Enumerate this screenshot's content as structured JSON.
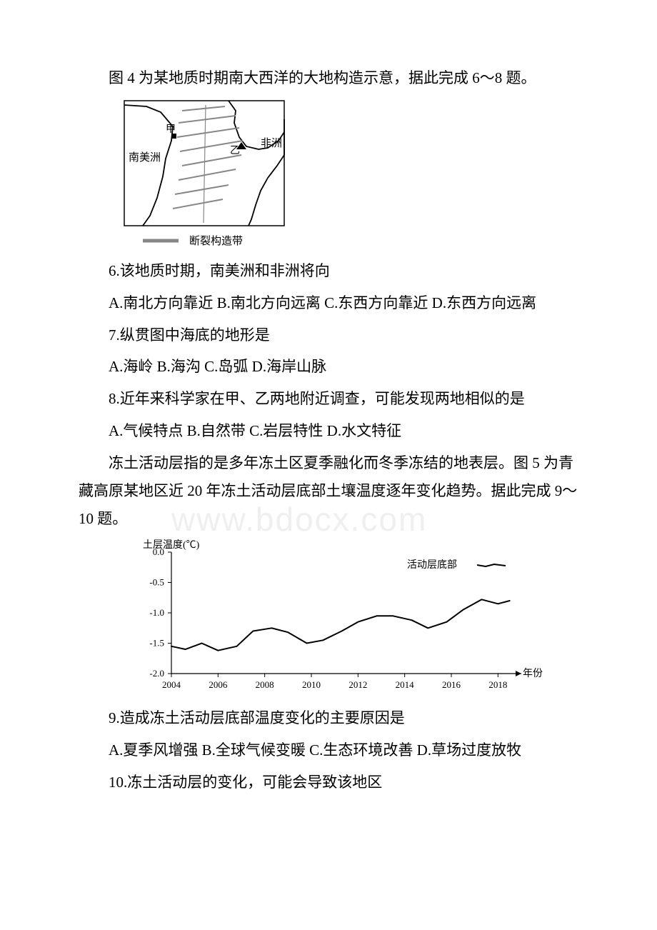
{
  "watermark": "www.bdocx.com",
  "intro1": "图 4 为某地质时期南大西洋的大地构造示意，据此完成 6～8 题。",
  "fig4": {
    "left_label": "南美洲",
    "right_label": "非洲",
    "jia": "甲",
    "yi": "乙",
    "legend": "断裂构造带",
    "stroke": "#000000",
    "legend_stroke": "#878787",
    "bg": "#ffffff"
  },
  "q6": {
    "stem": "6.该地质时期，南美洲和非洲将向",
    "opts": "A.南北方向靠近 B.南北方向远离 C.东西方向靠近 D.东西方向远离"
  },
  "q7": {
    "stem": "7.纵贯图中海底的地形是",
    "opts": "A.海岭 B.海沟 C.岛弧 D.海岸山脉"
  },
  "q8": {
    "stem": "8.近年来科学家在甲、乙两地附近调查，可能发现两地相似的是",
    "opts": "A.气候特点 B.自然带 C.岩层特性 D.水文特征"
  },
  "intro2": "冻土活动层指的是多年冻土区夏季融化而冬季冻结的地表层。图 5 为青藏高原某地区近 20 年冻土活动层底部土壤温度逐年变化趋势。据此完成 9～10 题。",
  "chart": {
    "type": "line",
    "title_y": "土层温度(℃)",
    "x_label": "年份",
    "legend_label": "活动层底部",
    "x_ticks": [
      2004,
      2006,
      2008,
      2010,
      2012,
      2014,
      2016,
      2018
    ],
    "y_ticks": [
      0.0,
      -0.5,
      -1.0,
      -1.5,
      -2.0
    ],
    "y_tick_labels": [
      "0.0",
      "-0.5",
      "-1.0",
      "-1.5",
      "-2.0"
    ],
    "xlim": [
      2004,
      2019
    ],
    "ylim": [
      -2.0,
      0.0
    ],
    "points": [
      [
        2004,
        -1.55
      ],
      [
        2004.6,
        -1.6
      ],
      [
        2005.3,
        -1.5
      ],
      [
        2006,
        -1.62
      ],
      [
        2006.8,
        -1.55
      ],
      [
        2007.5,
        -1.3
      ],
      [
        2008.3,
        -1.25
      ],
      [
        2009,
        -1.32
      ],
      [
        2009.8,
        -1.5
      ],
      [
        2010.5,
        -1.45
      ],
      [
        2011.3,
        -1.3
      ],
      [
        2012,
        -1.15
      ],
      [
        2012.8,
        -1.05
      ],
      [
        2013.5,
        -1.05
      ],
      [
        2014.3,
        -1.12
      ],
      [
        2015,
        -1.25
      ],
      [
        2015.8,
        -1.15
      ],
      [
        2016.5,
        -0.95
      ],
      [
        2017.3,
        -0.78
      ],
      [
        2018,
        -0.85
      ],
      [
        2018.5,
        -0.8
      ]
    ],
    "legend_sample": [
      [
        0,
        -0.85
      ],
      [
        0.3,
        -0.75
      ],
      [
        0.6,
        -0.9
      ],
      [
        1,
        -0.8
      ]
    ],
    "line_color": "#000000",
    "axis_color": "#000000",
    "tick_font_size": 13,
    "label_font_size": 14,
    "bg": "#ffffff",
    "line_width": 2
  },
  "q9": {
    "stem": "9.造成冻土活动层底部温度变化的主要原因是",
    "opts": "A.夏季风增强 B.全球气候变暖 C.生态环境改善 D.草场过度放牧"
  },
  "q10": {
    "stem": "10.冻土活动层的变化，可能会导致该地区"
  }
}
